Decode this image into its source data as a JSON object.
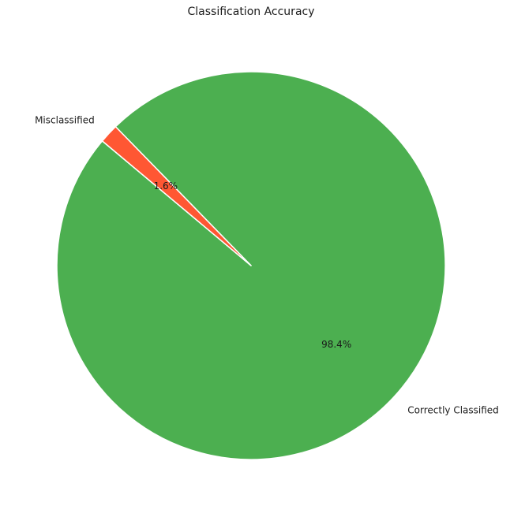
{
  "chart_data": {
    "type": "pie",
    "title": "Classification Accuracy",
    "slices": [
      {
        "label": "Correctly Classified",
        "value": 98.4,
        "percent_label": "98.4%",
        "color": "#4CAF50"
      },
      {
        "label": "Misclassified",
        "value": 1.6,
        "percent_label": "1.6%",
        "color": "#FF5733"
      }
    ],
    "start_angle_deg": 140,
    "direction": "counterclockwise",
    "slice_edge_color": "#ffffff",
    "legend": false
  }
}
